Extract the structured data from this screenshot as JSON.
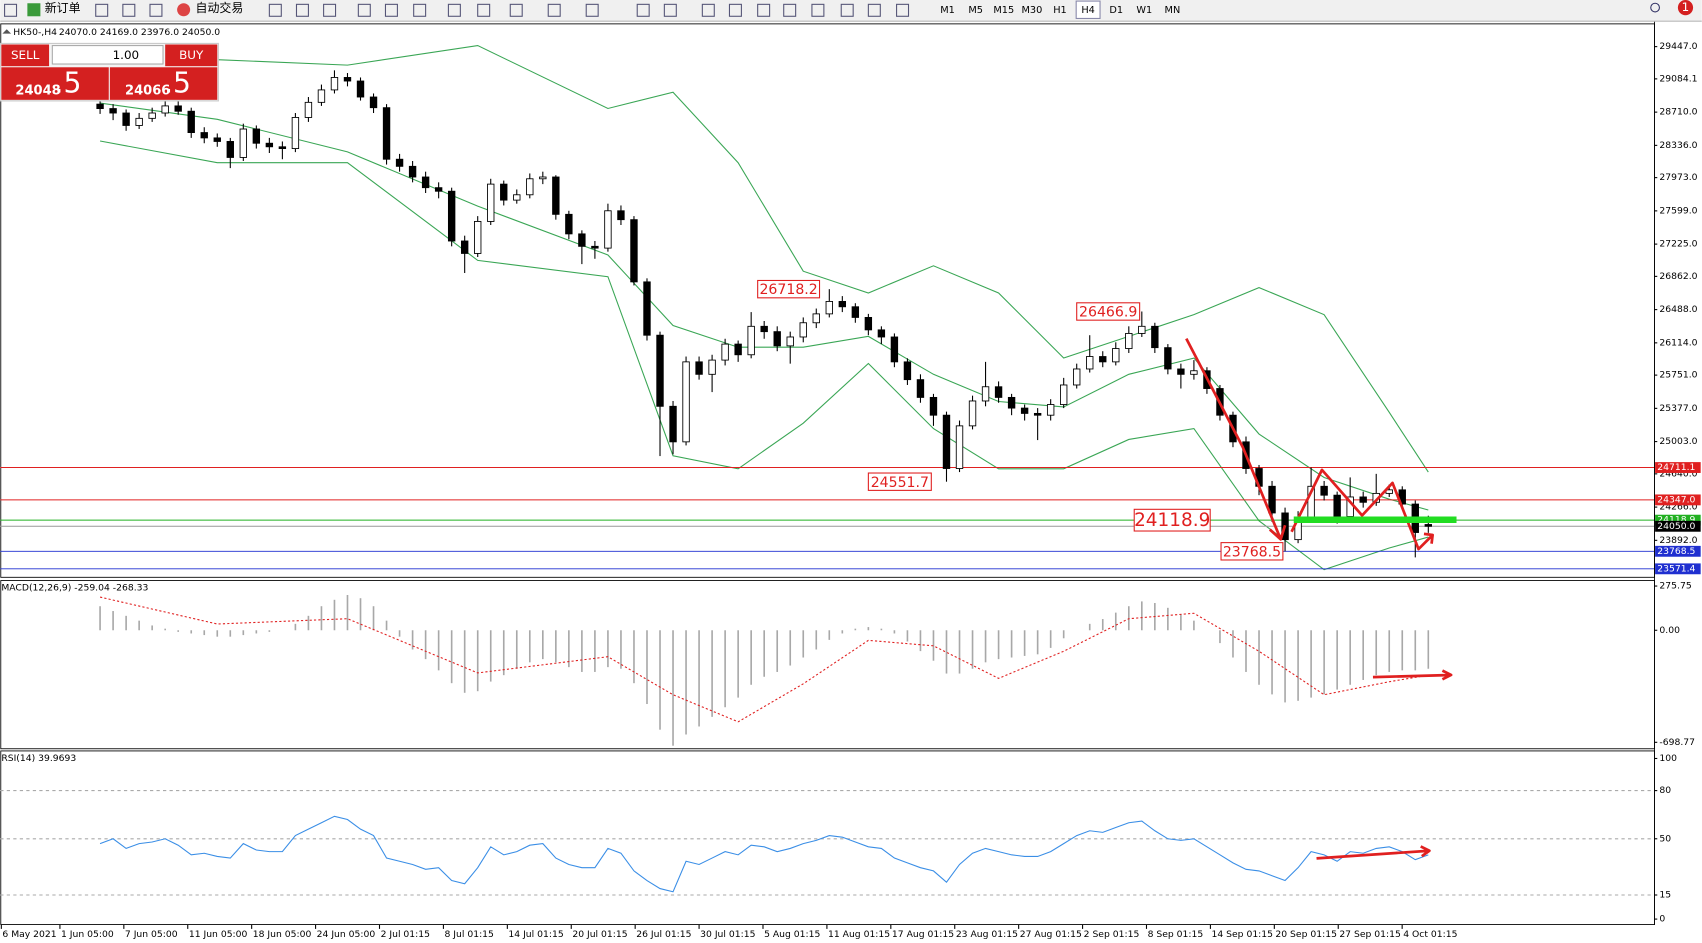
{
  "toolbar": {
    "new_order": "新订单",
    "auto_trading": "自动交易",
    "timeframes": [
      "M1",
      "M5",
      "M15",
      "M30",
      "H1",
      "H4",
      "D1",
      "W1",
      "MN"
    ],
    "notifications": "1"
  },
  "trade_panel": {
    "sell": "SELL",
    "buy": "BUY",
    "lots": "1.00",
    "bid_main": "24048",
    "bid_pips": ".5",
    "ask_main": "24066",
    "ask_pips": ".5"
  },
  "chart_data": [
    {
      "type": "candlestick",
      "title": "HK50-,H4",
      "subtitle": "24070.0 24169.0 23976.0 24050.0",
      "x_labels": [
        "6 May 2021",
        "1 Jun 05:00",
        "7 Jun 05:00",
        "11 Jun 05:00",
        "18 Jun 05:00",
        "24 Jun 05:00",
        "2 Jul 01:15",
        "8 Jul 01:15",
        "14 Jul 01:15",
        "20 Jul 01:15",
        "26 Jul 01:15",
        "30 Jul 01:15",
        "5 Aug 01:15",
        "11 Aug 01:15",
        "17 Aug 01:15",
        "23 Aug 01:15",
        "27 Aug 01:15",
        "2 Sep 01:15",
        "8 Sep 01:15",
        "14 Sep 01:15",
        "20 Sep 01:15",
        "27 Sep 01:15",
        "4 Oct 01:15"
      ],
      "open": [
        28800,
        28750,
        28700,
        28560,
        28640,
        28700,
        28780,
        28720,
        28480,
        28420,
        28380,
        28200,
        28520,
        28360,
        28320,
        28300,
        28650,
        28820,
        28960,
        29100,
        29060,
        28880,
        28760,
        28180,
        28100,
        27980,
        27860,
        27820,
        27260,
        27120,
        27480,
        27900,
        27720,
        27780,
        27960,
        27980,
        27560,
        27340,
        27200,
        27180,
        27600,
        27500,
        26800,
        26200,
        25400,
        25000,
        25900,
        25760,
        25920,
        26100,
        25980,
        26300,
        26240,
        26080,
        26180,
        26340,
        26440,
        26580,
        26520,
        26400,
        26260,
        26180,
        25900,
        25700,
        25500,
        25300,
        24700,
        25180,
        25460,
        25620,
        25500,
        25380,
        25320,
        25300,
        25420,
        25640,
        25820,
        25960,
        25900,
        26050,
        26220,
        26300,
        26060,
        25820,
        25760,
        25800,
        25600,
        25300,
        25000,
        24700,
        24500,
        24200,
        23900,
        24150,
        24500,
        24400,
        24160,
        24380,
        24320,
        24420,
        24460,
        24300,
        24070
      ],
      "high": [
        28860,
        28800,
        28740,
        28700,
        28760,
        28840,
        28830,
        28760,
        28540,
        28470,
        28420,
        28580,
        28560,
        28420,
        28380,
        28700,
        28880,
        29020,
        29180,
        29150,
        29100,
        28920,
        28800,
        28240,
        28160,
        28040,
        27920,
        27860,
        27320,
        27540,
        27960,
        27940,
        27840,
        28020,
        28040,
        28000,
        27600,
        27380,
        27260,
        27680,
        27660,
        27540,
        26840,
        26240,
        25460,
        25960,
        25960,
        25980,
        26160,
        26140,
        26460,
        26360,
        26300,
        26240,
        26400,
        26500,
        26718.2,
        26640,
        26560,
        26440,
        26300,
        26220,
        25940,
        25760,
        25540,
        25340,
        25240,
        25520,
        25900,
        25680,
        25540,
        25420,
        25380,
        25480,
        25720,
        25880,
        26200,
        26020,
        26120,
        26300,
        26466.9,
        26340,
        26100,
        25880,
        25920,
        25840,
        25640,
        25340,
        25060,
        24740,
        24560,
        24260,
        24220,
        24711.1,
        24560,
        24440,
        24600,
        24440,
        24640,
        24520,
        24500,
        24340,
        24169
      ],
      "low": [
        28690,
        28620,
        28500,
        28520,
        28600,
        28660,
        28680,
        28420,
        28360,
        28320,
        28080,
        28160,
        28300,
        28250,
        28180,
        28260,
        28600,
        28780,
        28920,
        29000,
        28840,
        28700,
        28120,
        28040,
        27920,
        27800,
        27740,
        27200,
        26900,
        27080,
        27440,
        27660,
        27680,
        27740,
        27900,
        27500,
        27280,
        27000,
        27060,
        27140,
        27440,
        26760,
        26140,
        24840,
        24860,
        24960,
        25700,
        25560,
        25860,
        25900,
        25940,
        26160,
        26020,
        25880,
        26120,
        26280,
        26400,
        26460,
        26340,
        26200,
        26100,
        25840,
        25640,
        25440,
        25180,
        24551.7,
        24660,
        25140,
        25400,
        25440,
        25300,
        25240,
        25020,
        25240,
        25380,
        25600,
        25780,
        25840,
        25860,
        26000,
        26180,
        26000,
        25760,
        25600,
        25700,
        25540,
        25240,
        24940,
        24640,
        24400,
        24100,
        23768.5,
        23860,
        24100,
        24340,
        24080,
        24120,
        24260,
        24280,
        24380,
        24240,
        23700,
        23976
      ],
      "close": [
        28750,
        28700,
        28560,
        28640,
        28700,
        28780,
        28720,
        28480,
        28420,
        28380,
        28200,
        28520,
        28360,
        28320,
        28300,
        28650,
        28820,
        28960,
        29100,
        29060,
        28880,
        28760,
        28180,
        28100,
        27980,
        27860,
        27820,
        27260,
        27120,
        27480,
        27900,
        27720,
        27780,
        27960,
        27980,
        27560,
        27340,
        27200,
        27180,
        27600,
        27500,
        26800,
        26200,
        25400,
        25000,
        25900,
        25760,
        25920,
        26100,
        25980,
        26300,
        26240,
        26080,
        26180,
        26340,
        26440,
        26580,
        26520,
        26400,
        26260,
        26180,
        25900,
        25700,
        25500,
        25300,
        24700,
        25180,
        25460,
        25620,
        25500,
        25380,
        25320,
        25300,
        25420,
        25640,
        25820,
        25960,
        25900,
        26050,
        26220,
        26300,
        26060,
        25820,
        25760,
        25800,
        25600,
        25300,
        25000,
        24700,
        24500,
        24200,
        23900,
        24150,
        24500,
        24400,
        24160,
        24380,
        24320,
        24420,
        24460,
        24300,
        23980,
        24050
      ],
      "up_color": "#ffffff",
      "down_color": "#000000",
      "bands": {
        "color": "#3aa655",
        "x": [
          0,
          9,
          19,
          29,
          39,
          44,
          49,
          54,
          59,
          64,
          69,
          74,
          79,
          84,
          89,
          94,
          99,
          102
        ],
        "upper": [
          29178,
          29300,
          29239,
          29459,
          28751,
          28934,
          28141,
          26920,
          26675,
          26981,
          26675,
          25943,
          26187,
          26431,
          26736,
          26431,
          25332,
          24660
        ],
        "middle": [
          28812,
          28629,
          28263,
          27652,
          27103,
          26309,
          26065,
          26065,
          26187,
          25760,
          25454,
          25393,
          25760,
          25943,
          25088,
          24599,
          24355,
          24233
        ],
        "lower": [
          28385,
          28141,
          28141,
          27042,
          26858,
          24844,
          24697,
          25210,
          25882,
          25149,
          24697,
          24697,
          25027,
          25149,
          24111,
          23562,
          23806,
          23929
        ]
      },
      "levels": [
        {
          "value": 24711.1,
          "color": "#e02020"
        },
        {
          "value": 24347,
          "label": "24347.0",
          "color": "#e02020"
        },
        {
          "value": 24118.9,
          "color": "#20b020"
        },
        {
          "value": 24050,
          "label": "24050.0",
          "color": "#000000"
        },
        {
          "value": 23768.5,
          "color": "#1f2fd0"
        },
        {
          "value": 23571.4,
          "color": "#1f2fd0"
        }
      ],
      "annotations": [
        26718.2,
        26466.9,
        24551.7,
        24118.9,
        23768.5
      ],
      "ylim": [
        23476,
        29703
      ],
      "yticks": [
        {
          "value": 29447,
          "label": "29447.0"
        },
        29084.1,
        {
          "value": 28710,
          "label": "28710.0"
        },
        {
          "value": 28336,
          "label": "28336.0"
        },
        {
          "value": 27973,
          "label": "27973.0"
        },
        {
          "value": 27599,
          "label": "27599.0"
        },
        {
          "value": 27225,
          "label": "27225.0"
        },
        {
          "value": 26862,
          "label": "26862.0"
        },
        {
          "value": 26488,
          "label": "26488.0"
        },
        {
          "value": 26114,
          "label": "26114.0"
        },
        {
          "value": 25751,
          "label": "25751.0"
        },
        {
          "value": 25377,
          "label": "25377.0"
        },
        {
          "value": 25003,
          "label": "25003.0"
        },
        {
          "value": 24640,
          "label": "24640.0"
        },
        {
          "value": 24266,
          "label": "24266.0"
        },
        {
          "value": 23892,
          "label": "23892.0"
        }
      ]
    },
    {
      "type": "bar",
      "title": "MACD(12,26,9) -259.04 -268.33",
      "color": "#a8a8a8",
      "values": [
        150,
        120,
        90,
        60,
        30,
        10,
        -10,
        -20,
        -30,
        -40,
        -40,
        -30,
        -20,
        -10,
        0,
        40,
        90,
        150,
        190,
        220,
        200,
        150,
        60,
        -40,
        -120,
        -180,
        -250,
        -330,
        -390,
        -380,
        -320,
        -280,
        -240,
        -200,
        -180,
        -200,
        -230,
        -260,
        -260,
        -230,
        -240,
        -330,
        -460,
        -620,
        -720,
        -650,
        -600,
        -540,
        -480,
        -420,
        -340,
        -290,
        -260,
        -220,
        -170,
        -120,
        -60,
        -20,
        10,
        20,
        10,
        -20,
        -70,
        -130,
        -190,
        -270,
        -270,
        -240,
        -200,
        -180,
        -170,
        -160,
        -150,
        -110,
        -50,
        0,
        40,
        70,
        110,
        150,
        180,
        170,
        140,
        100,
        60,
        0,
        -80,
        -170,
        -260,
        -340,
        -400,
        -450,
        -440,
        -420,
        -400,
        -370,
        -340,
        -310,
        -280,
        -260,
        -250,
        -250,
        -240
      ],
      "signal": {
        "color": "#e02020",
        "x": [
          0,
          9,
          19,
          29,
          39,
          44,
          49,
          54,
          59,
          64,
          69,
          74,
          79,
          84,
          89,
          94,
          99,
          102
        ],
        "values": [
          207,
          39,
          72,
          -266,
          -165,
          -402,
          -571,
          -334,
          -63,
          -97,
          -300,
          -131,
          72,
          106,
          -131,
          -402,
          -321,
          -280
        ]
      },
      "ylim": [
        -739,
        310
      ],
      "yticks": [
        275.75,
        {
          "value": 0,
          "label": "0.00"
        },
        -698.77
      ]
    },
    {
      "type": "line",
      "title": "RSI(14) 39.9693",
      "color": "#3a8ee6",
      "values": [
        47,
        50,
        44,
        47,
        48,
        50,
        46,
        40,
        41,
        39,
        38,
        47,
        43,
        42,
        42,
        52,
        56,
        60,
        64,
        62,
        56,
        52,
        38,
        36,
        34,
        31,
        32,
        24,
        22,
        32,
        45,
        40,
        42,
        46,
        47,
        38,
        34,
        32,
        32,
        44,
        41,
        30,
        24,
        19,
        17,
        36,
        34,
        38,
        42,
        40,
        46,
        45,
        42,
        44,
        47,
        49,
        52,
        51,
        48,
        45,
        44,
        38,
        35,
        32,
        30,
        23,
        34,
        41,
        44,
        42,
        40,
        39,
        39,
        42,
        47,
        52,
        55,
        54,
        57,
        60,
        61,
        55,
        50,
        49,
        50,
        45,
        40,
        35,
        31,
        30,
        27,
        24,
        32,
        42,
        40,
        36,
        42,
        41,
        44,
        45,
        42,
        37,
        40
      ],
      "levels": [
        80,
        50,
        15
      ],
      "ylim": [
        -3.4,
        104.7
      ],
      "yticks": [
        100,
        80,
        50,
        15,
        0
      ]
    }
  ]
}
